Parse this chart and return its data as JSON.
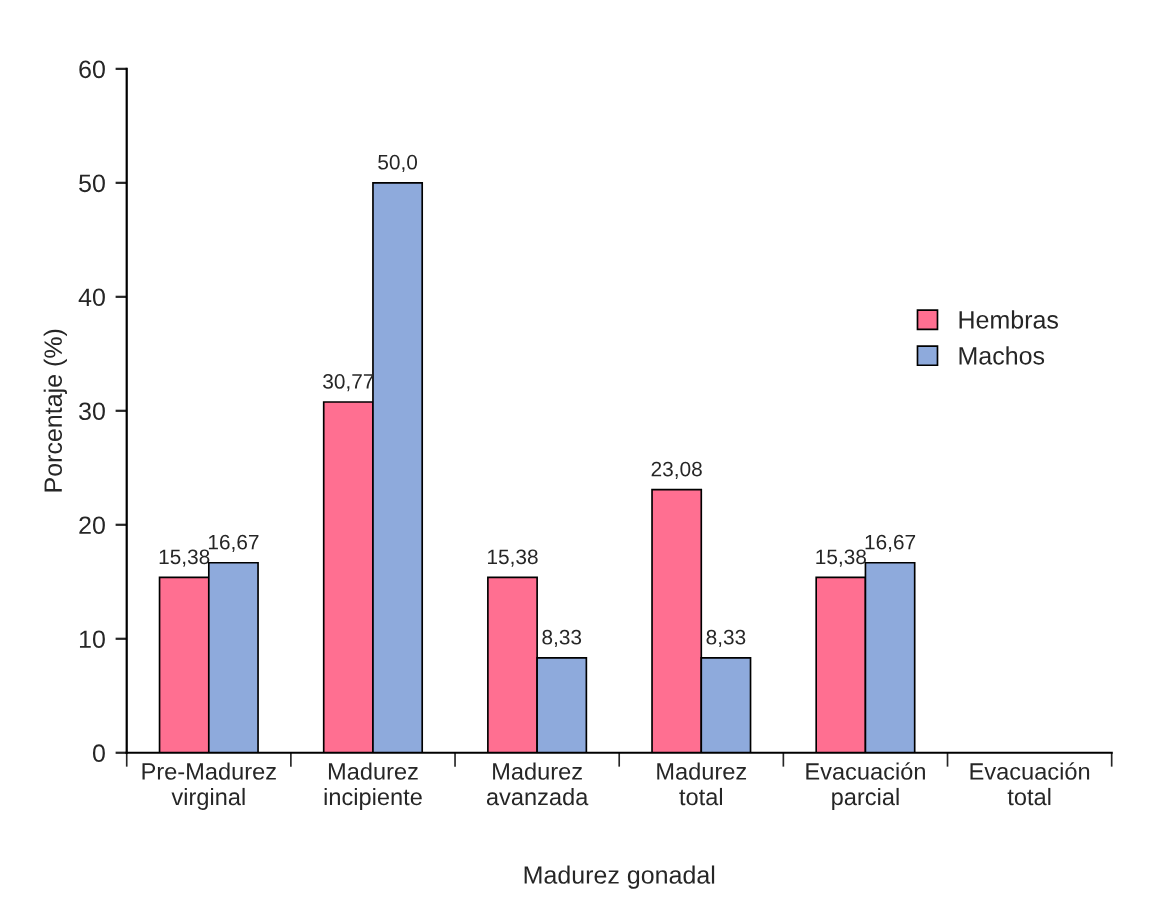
{
  "chart_data": {
    "type": "bar",
    "xlabel": "Madurez gonadal",
    "ylabel": "Porcentaje (%)",
    "categories": [
      "Pre-Madurez\nvirginal",
      "Madurez\nincipiente",
      "Madurez\navanzada",
      "Madurez\ntotal",
      "Evacuación\nparcial",
      "Evacuación\ntotal"
    ],
    "series": [
      {
        "name": "Hembras",
        "color": "#ff6f91",
        "values": [
          15.38,
          30.77,
          15.38,
          23.08,
          15.38,
          null
        ],
        "value_labels": [
          "15,38",
          "30,77",
          "15,38",
          "23,08",
          "15,38",
          null
        ]
      },
      {
        "name": "Machos",
        "color": "#8eaadc",
        "values": [
          16.67,
          50.0,
          8.33,
          8.33,
          16.67,
          null
        ],
        "value_labels": [
          "16,67",
          "50,0",
          "8,33",
          "8,33",
          "16,67",
          null
        ]
      }
    ],
    "ylim": [
      0,
      60
    ],
    "yticks": [
      0,
      10,
      20,
      30,
      40,
      50,
      60
    ],
    "grid": false,
    "legend": "right"
  }
}
